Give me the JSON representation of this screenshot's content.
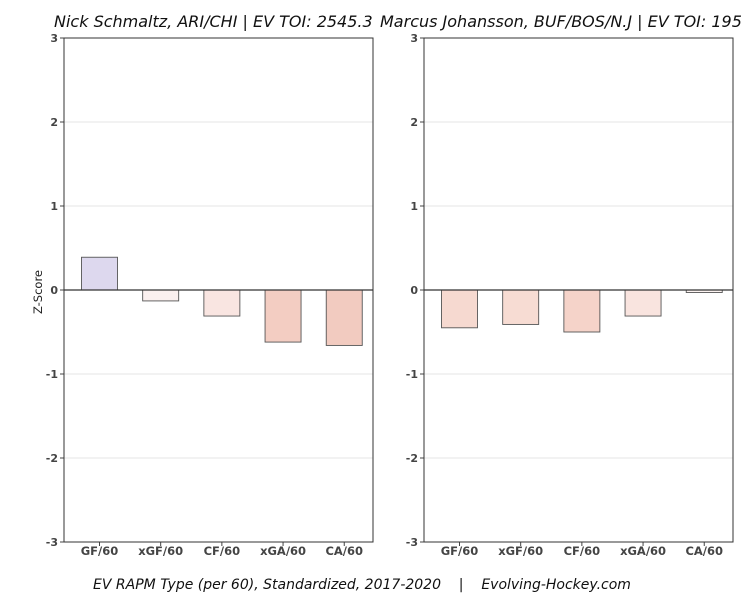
{
  "chart_data": [
    {
      "type": "bar",
      "title": "Nick Schmaltz, ARI/CHI  |  EV TOI: 2545.3",
      "ylabel": "Z-Score",
      "xlabel": "",
      "ylim": [
        -3,
        3
      ],
      "yticks": [
        3,
        2,
        1,
        0,
        -1,
        -2,
        -3
      ],
      "grid": "horizontal",
      "categories": [
        "GF/60",
        "xGF/60",
        "CF/60",
        "xGA/60",
        "CA/60"
      ],
      "values": [
        0.39,
        -0.13,
        -0.31,
        -0.62,
        -0.66
      ],
      "colors": [
        "#ddd8ee",
        "#fbf0ef",
        "#f9e5e1",
        "#f3cdc2",
        "#f2cbc0"
      ]
    },
    {
      "type": "bar",
      "title": "Marcus Johansson, BUF/BOS/N.J  |  EV TOI: 195",
      "ylabel": "",
      "xlabel": "",
      "ylim": [
        -3,
        3
      ],
      "yticks": [
        3,
        2,
        1,
        0,
        -1,
        -2,
        -3
      ],
      "grid": "horizontal",
      "categories": [
        "GF/60",
        "xGF/60",
        "CF/60",
        "xGA/60",
        "CA/60"
      ],
      "values": [
        -0.45,
        -0.41,
        -0.5,
        -0.31,
        -0.03
      ],
      "colors": [
        "#f6d9d0",
        "#f7dcd3",
        "#f5d3c9",
        "#f9e4df",
        "#fdf4f2"
      ]
    }
  ],
  "footer": "EV RAPM Type (per 60), Standardized, 2017-2020    |    Evolving-Hockey.com"
}
